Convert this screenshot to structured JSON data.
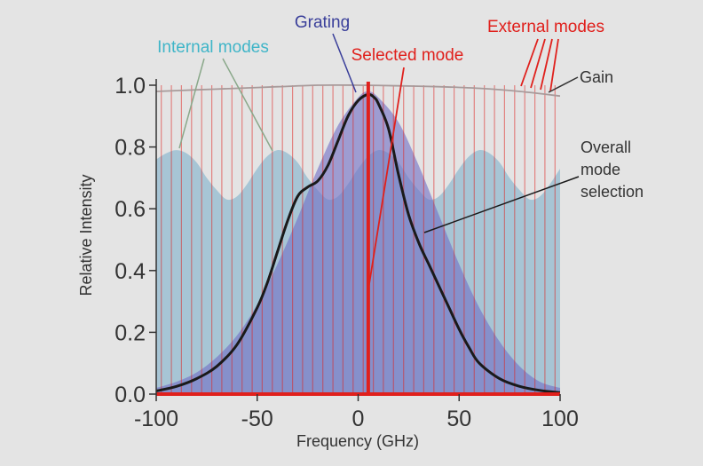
{
  "chart_data": {
    "type": "line",
    "xlabel": "Frequency (GHz)",
    "ylabel": "Relative Intensity",
    "xlim": [
      -100,
      100
    ],
    "ylim": [
      0,
      1.0
    ],
    "x_ticks": [
      -100,
      -50,
      0,
      50,
      100
    ],
    "x_tick_labels": [
      "-100",
      "-50",
      "0",
      "50",
      "100"
    ],
    "y_ticks": [
      0,
      0.2,
      0.4,
      0.6,
      0.8,
      1.0
    ],
    "y_tick_labels": [
      "0.0",
      "0.2",
      "0.4",
      "0.6",
      "0.8",
      "1.0"
    ],
    "grid": false,
    "colors": {
      "internal": "#7fb0cc",
      "grating": "#6f6cc4",
      "external": "#e0201c",
      "overall": "#1a1a1a",
      "gain": "#a89a9a",
      "selected": "#e0201c",
      "internal_label": "#3fb5c8",
      "grating_label": "#3a3f9a",
      "external_label": "#e0201c",
      "black_label": "#333333"
    },
    "series": [
      {
        "name": "Internal modes",
        "x": [
          -100,
          -95,
          -90,
          -85,
          -80,
          -75,
          -70,
          -65,
          -60,
          -55,
          -50,
          -45,
          -40,
          -35,
          -30,
          -25,
          -20,
          -15,
          -10,
          -5,
          0,
          5,
          10,
          15,
          20,
          25,
          30,
          35,
          40,
          45,
          50,
          55,
          60,
          65,
          70,
          75,
          80,
          85,
          90,
          95,
          100
        ],
        "y": [
          0.76,
          0.78,
          0.79,
          0.78,
          0.75,
          0.7,
          0.66,
          0.63,
          0.64,
          0.68,
          0.73,
          0.77,
          0.79,
          0.78,
          0.75,
          0.7,
          0.66,
          0.63,
          0.64,
          0.68,
          0.73,
          0.77,
          0.79,
          0.78,
          0.75,
          0.7,
          0.66,
          0.63,
          0.64,
          0.68,
          0.73,
          0.77,
          0.79,
          0.78,
          0.75,
          0.7,
          0.66,
          0.63,
          0.64,
          0.68,
          0.73
        ]
      },
      {
        "name": "Grating",
        "x": [
          -100,
          -90,
          -80,
          -70,
          -60,
          -50,
          -40,
          -30,
          -20,
          -10,
          0,
          5,
          10,
          20,
          30,
          40,
          50,
          60,
          70,
          80,
          90,
          100
        ],
        "y": [
          0.02,
          0.04,
          0.07,
          0.12,
          0.19,
          0.29,
          0.42,
          0.57,
          0.73,
          0.87,
          0.96,
          0.98,
          0.96,
          0.88,
          0.74,
          0.58,
          0.42,
          0.28,
          0.17,
          0.09,
          0.04,
          0.02
        ]
      },
      {
        "name": "Overall mode selection",
        "x": [
          -100,
          -90,
          -80,
          -70,
          -60,
          -50,
          -45,
          -40,
          -35,
          -30,
          -25,
          -20,
          -15,
          -10,
          -5,
          0,
          5,
          8,
          10,
          15,
          20,
          25,
          30,
          35,
          40,
          45,
          50,
          55,
          60,
          70,
          80,
          90,
          100
        ],
        "y": [
          0.01,
          0.025,
          0.05,
          0.09,
          0.16,
          0.28,
          0.36,
          0.46,
          0.56,
          0.64,
          0.67,
          0.69,
          0.74,
          0.82,
          0.9,
          0.95,
          0.97,
          0.96,
          0.94,
          0.86,
          0.71,
          0.58,
          0.49,
          0.42,
          0.35,
          0.28,
          0.21,
          0.15,
          0.1,
          0.05,
          0.025,
          0.012,
          0.005
        ]
      },
      {
        "name": "Gain",
        "x": [
          -100,
          -80,
          -60,
          -40,
          -20,
          0,
          20,
          40,
          60,
          80,
          100
        ],
        "y": [
          0.98,
          0.985,
          0.99,
          0.995,
          1.0,
          1.0,
          0.998,
          0.995,
          0.99,
          0.98,
          0.965
        ]
      }
    ],
    "external_modes": {
      "name": "External modes",
      "spacing": 5,
      "positions": [
        -97.5,
        -92.5,
        -87.5,
        -82.5,
        -77.5,
        -72.5,
        -67.5,
        -62.5,
        -57.5,
        -52.5,
        -47.5,
        -42.5,
        -37.5,
        -32.5,
        -27.5,
        -22.5,
        -17.5,
        -12.5,
        -7.5,
        -2.5,
        2.5,
        7.5,
        12.5,
        17.5,
        22.5,
        27.5,
        32.5,
        37.5,
        42.5,
        47.5,
        52.5,
        57.5,
        62.5,
        67.5,
        72.5,
        77.5,
        82.5,
        87.5,
        92.5,
        97.5
      ]
    },
    "selected_mode": {
      "name": "Selected mode",
      "x": 5,
      "y": 1.0
    },
    "annotations": [
      {
        "text": "Internal modes",
        "target": "internal"
      },
      {
        "text": "Grating",
        "target": "grating"
      },
      {
        "text": "Selected mode",
        "target": "selected"
      },
      {
        "text": "External modes",
        "target": "external"
      },
      {
        "text": "Gain",
        "target": "gain"
      },
      {
        "text": "Overall",
        "target": "overall"
      },
      {
        "text": "mode",
        "target": "overall"
      },
      {
        "text": "selection",
        "target": "overall"
      }
    ]
  }
}
